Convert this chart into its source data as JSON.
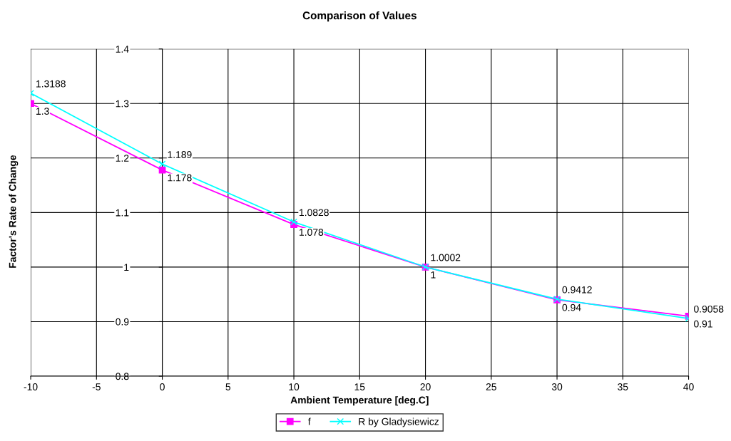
{
  "chart_data": {
    "type": "line",
    "title": "Comparison of Values",
    "xlabel": "Ambient Temperature [deg.C]",
    "ylabel": "Factor's Rate of Change",
    "x": [
      -10,
      0,
      10,
      20,
      30,
      40
    ],
    "series": [
      {
        "name": "f",
        "color": "#ff00ff",
        "marker": "square",
        "values": [
          1.3,
          1.178,
          1.078,
          1,
          0.94,
          0.91
        ]
      },
      {
        "name": "R by Gladysiewicz",
        "color": "#00ffff",
        "marker": "cross",
        "values": [
          1.3188,
          1.189,
          1.0828,
          1.0002,
          0.9412,
          0.9058
        ]
      }
    ],
    "xlim": [
      -10,
      40
    ],
    "xticks": [
      -10,
      -5,
      0,
      5,
      10,
      15,
      20,
      25,
      30,
      35,
      40
    ],
    "ylim": [
      0.8,
      1.4
    ],
    "yticks": [
      0.8,
      0.9,
      1,
      1.1,
      1.2,
      1.3,
      1.4
    ],
    "grid": true,
    "legend": "bottom",
    "data_labels": true
  }
}
